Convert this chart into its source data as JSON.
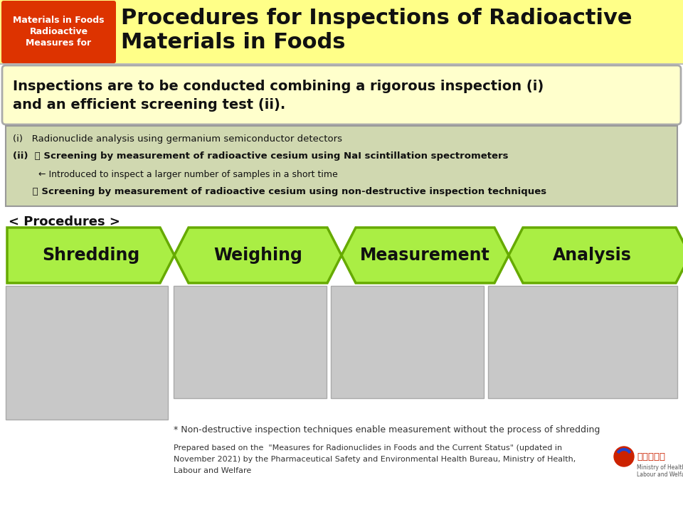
{
  "header_badge_lines": [
    "Measures for",
    "Radioactive",
    "Materials in Foods"
  ],
  "header_bg": "#FFFF88",
  "header_badge_bg": "#DD3300",
  "header_badge_text_color": "#FFFFFF",
  "header_title_line1": "Procedures for Inspections of Radioactive",
  "header_title_line2": "Materials in Foods",
  "header_title_color": "#111111",
  "subtitle_box_text_line1": "Inspections are to be conducted combining a rigorous inspection (i)",
  "subtitle_box_text_line2": "and an efficient screening test (ii).",
  "subtitle_box_bg": "#FFFFCC",
  "subtitle_box_border": "#AAAAAA",
  "info_box_bg": "#D0D8B0",
  "info_box_border": "#999999",
  "info_line1": "(i)   Radionuclide analysis using germanium semiconductor detectors",
  "info_line2_bold": "(ii)  ・ Screening by measurement of radioactive cesium using NaI scintillation spectrometers",
  "info_line3": "         ← Introduced to inspect a larger number of samples in a short time",
  "info_line4_bold": "      ・ Screening by measurement of radioactive cesium using non-destructive inspection techniques",
  "procedures_label": "< Procedures >",
  "arrow_steps": [
    "Shredding",
    "Weighing",
    "Measurement",
    "Analysis"
  ],
  "arrow_fill": "#AAEE44",
  "arrow_outline": "#66AA00",
  "arrow_text_color": "#111111",
  "footnote": "* Non-destructive inspection techniques enable measurement without the process of shredding",
  "prepared_text_line1": "Prepared based on the  \"Measures for Radionuclides in Foods and the Current Status\" (updated in",
  "prepared_text_line2": "November 2021) by the Pharmaceutical Safety and Environmental Health Bureau, Ministry of Health,",
  "prepared_text_line3": "Labour and Welfare",
  "bg_color": "#FFFFFF"
}
